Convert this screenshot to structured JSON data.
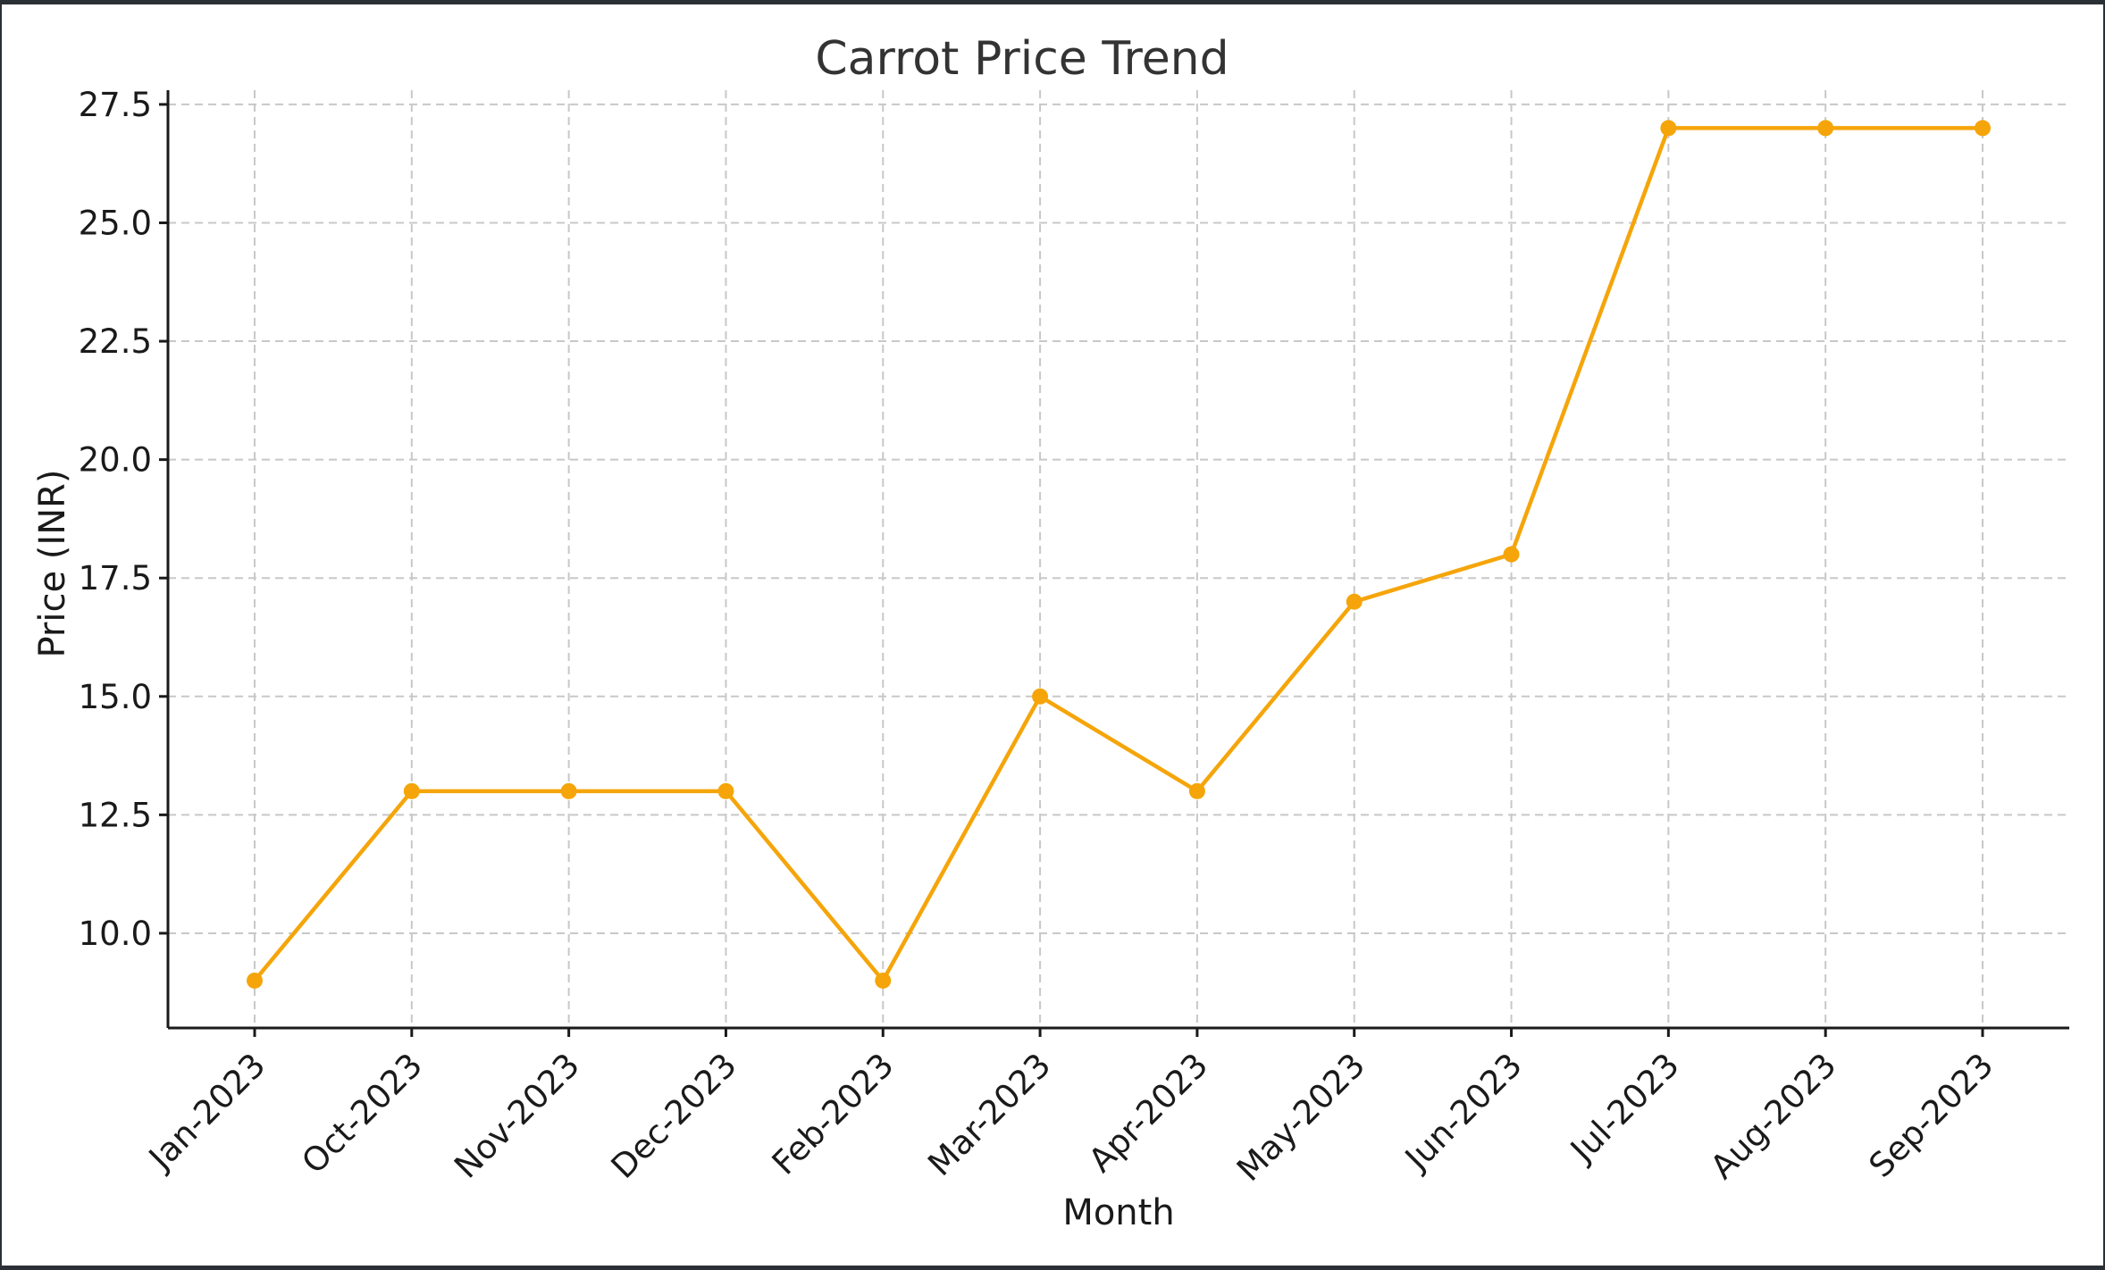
{
  "chart_data": {
    "type": "line",
    "title": "Carrot Price Trend",
    "xlabel": "Month",
    "ylabel": "Price (INR)",
    "categories": [
      "Jan-2023",
      "Oct-2023",
      "Nov-2023",
      "Dec-2023",
      "Feb-2023",
      "Mar-2023",
      "Apr-2023",
      "May-2023",
      "Jun-2023",
      "Jul-2023",
      "Aug-2023",
      "Sep-2023"
    ],
    "series": [
      {
        "values": [
          9,
          13,
          13,
          13,
          9,
          15,
          13,
          17,
          18,
          27,
          27,
          27
        ]
      }
    ],
    "yticks": [
      "10.0",
      "12.5",
      "15.0",
      "17.5",
      "20.0",
      "22.5",
      "25.0",
      "27.5"
    ],
    "ylim": [
      8.0,
      27.8
    ],
    "grid": true,
    "legend": "none",
    "marker": "circle",
    "colors": {
      "line": "#f5a50a"
    }
  }
}
